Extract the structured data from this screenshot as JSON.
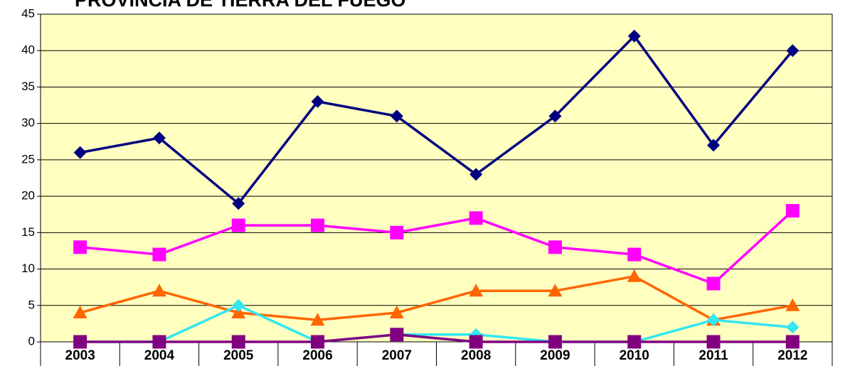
{
  "chart_data": {
    "type": "line",
    "title": "PROVINCIA DE TIERRA DEL FUEGO",
    "categories": [
      "2003",
      "2004",
      "2005",
      "2006",
      "2007",
      "2008",
      "2009",
      "2010",
      "2011",
      "2012"
    ],
    "series": [
      {
        "color": "#000080",
        "marker": "diamond",
        "values": [
          26,
          28,
          19,
          33,
          31,
          23,
          31,
          42,
          27,
          40
        ]
      },
      {
        "color": "#ff00ff",
        "marker": "square",
        "values": [
          13,
          12,
          16,
          16,
          15,
          17,
          13,
          12,
          8,
          18
        ]
      },
      {
        "color": "#ff6600",
        "marker": "triangle",
        "values": [
          4,
          7,
          4,
          3,
          4,
          7,
          7,
          9,
          3,
          5
        ]
      },
      {
        "color": "#33e6f0",
        "marker": "diamond",
        "values": [
          0,
          0,
          5,
          0,
          1,
          1,
          0,
          0,
          3,
          2
        ]
      },
      {
        "color": "#800080",
        "marker": "square",
        "values": [
          0,
          0,
          0,
          0,
          1,
          0,
          0,
          0,
          0,
          0
        ]
      }
    ],
    "ylim": [
      0,
      45
    ],
    "yticks": [
      0,
      5,
      10,
      15,
      20,
      25,
      30,
      35,
      40,
      45
    ],
    "grid": true
  }
}
